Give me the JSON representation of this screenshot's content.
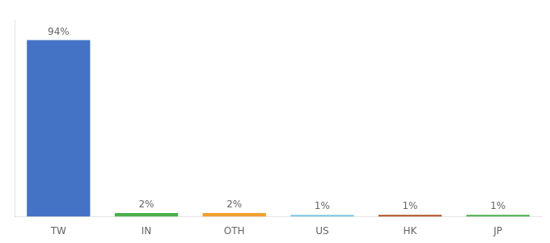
{
  "chart_data": {
    "type": "bar",
    "categories": [
      "TW",
      "IN",
      "OTH",
      "US",
      "HK",
      "JP"
    ],
    "values": [
      94,
      2,
      2,
      1,
      1,
      1
    ],
    "colors": [
      "#4472c4",
      "#4cae4c",
      "#f0a030",
      "#7ec8e3",
      "#b05020",
      "#4cae4c"
    ],
    "value_labels": [
      "94%",
      "2%",
      "2%",
      "1%",
      "1%",
      "1%"
    ],
    "data_labels": true,
    "ylim": [
      0,
      105
    ],
    "tick_labels": "x",
    "grid": false
  }
}
